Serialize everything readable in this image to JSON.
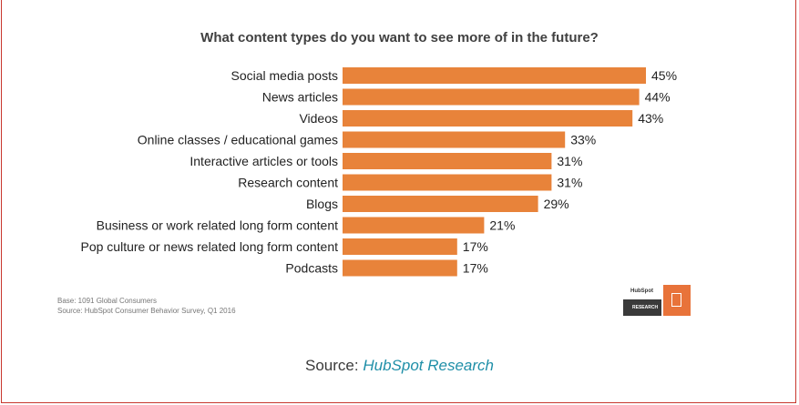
{
  "footnotes": {
    "base": "Base: 1091 Global Consumers",
    "source": "Source: HubSpot Consumer Behavior Survey, Q1 2016"
  },
  "logo": {
    "brand": "HubSpot",
    "research": "RESEARCH"
  },
  "footer": {
    "prefix": "Source:",
    "link": "HubSpot Research"
  },
  "colors": {
    "bar": "#E8833A",
    "frame": "#C8372D",
    "link": "#1F8FA8"
  },
  "chart_data": {
    "type": "bar",
    "orientation": "horizontal",
    "title": "What content types do you want to see more of in the future?",
    "categories": [
      "Social media posts",
      "News articles",
      "Videos",
      "Online classes / educational games",
      "Interactive articles or tools",
      "Research content",
      "Blogs",
      "Business or work related long form content",
      "Pop culture or news related long form content",
      "Podcasts"
    ],
    "values": [
      45,
      44,
      43,
      33,
      31,
      31,
      29,
      21,
      17,
      17
    ],
    "value_labels": [
      "45%",
      "44%",
      "43%",
      "33%",
      "31%",
      "31%",
      "29%",
      "21%",
      "17%",
      "17%"
    ],
    "xlim": [
      0,
      45
    ],
    "grid": false,
    "legend": "none"
  }
}
